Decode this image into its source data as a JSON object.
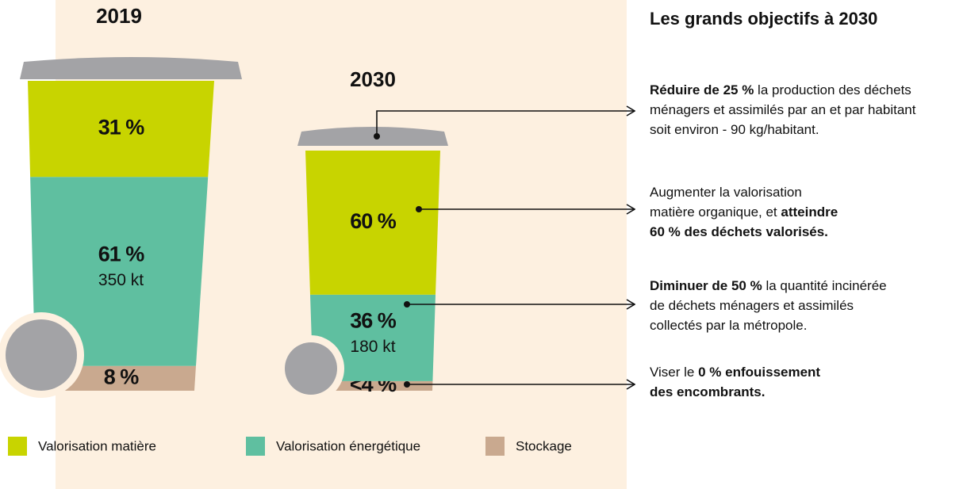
{
  "chart_data": {
    "type": "stacked-bin",
    "categories": [
      "2019",
      "2030"
    ],
    "series": [
      {
        "name": "Valorisation matière",
        "color": "#c8d400",
        "values": [
          31,
          60
        ],
        "value_labels": [
          "31 %",
          "60 %"
        ]
      },
      {
        "name": "Valorisation énergétique",
        "color": "#5fbfa0",
        "values": [
          61,
          36
        ],
        "value_labels": [
          "61 %",
          "36 %"
        ],
        "tonnage_labels": [
          "350 kt",
          "180 kt"
        ]
      },
      {
        "name": "Stockage",
        "color": "#c9a98f",
        "values": [
          8,
          4
        ],
        "value_labels": [
          "8 %",
          "<4 %"
        ]
      }
    ]
  },
  "objectives": {
    "title": "Les grands objectifs à 2030",
    "items": [
      {
        "lines": [
          [
            {
              "text": "Réduire de 25 %",
              "bold": true
            },
            {
              "text": " la production des déchets",
              "bold": false
            }
          ],
          [
            {
              "text": "ménagers et assimilés par an et par habitant",
              "bold": false
            }
          ],
          [
            {
              "text": "soit environ - 90 kg/habitant.",
              "bold": false
            }
          ]
        ]
      },
      {
        "lines": [
          [
            {
              "text": "Augmenter la valorisation",
              "bold": false
            }
          ],
          [
            {
              "text": "matière organique, et ",
              "bold": false
            },
            {
              "text": "atteindre",
              "bold": true
            }
          ],
          [
            {
              "text": "60 % des déchets valorisés.",
              "bold": true
            }
          ]
        ]
      },
      {
        "lines": [
          [
            {
              "text": "Diminuer de 50 %",
              "bold": true
            },
            {
              "text": " la quantité incinérée",
              "bold": false
            }
          ],
          [
            {
              "text": "de déchets ménagers et assimilés",
              "bold": false
            }
          ],
          [
            {
              "text": "collectés par la métropole.",
              "bold": false
            }
          ]
        ]
      },
      {
        "lines": [
          [
            {
              "text": "Viser le ",
              "bold": false
            },
            {
              "text": "0 % enfouissement",
              "bold": true
            }
          ],
          [
            {
              "text": "des encombrants.",
              "bold": true
            }
          ]
        ]
      }
    ]
  }
}
